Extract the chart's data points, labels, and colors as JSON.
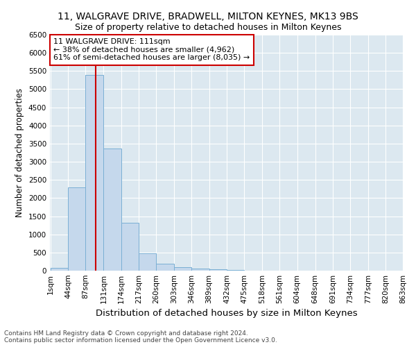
{
  "title1": "11, WALGRAVE DRIVE, BRADWELL, MILTON KEYNES, MK13 9BS",
  "title2": "Size of property relative to detached houses in Milton Keynes",
  "xlabel": "Distribution of detached houses by size in Milton Keynes",
  "ylabel": "Number of detached properties",
  "bar_values": [
    75,
    2300,
    5400,
    3370,
    1310,
    480,
    190,
    90,
    50,
    40,
    10,
    5,
    3,
    2,
    1,
    1,
    0,
    0,
    0,
    0
  ],
  "bin_edges": [
    1,
    44,
    87,
    131,
    174,
    217,
    260,
    303,
    346,
    389,
    432,
    475,
    518,
    561,
    604,
    648,
    691,
    734,
    777,
    820,
    863
  ],
  "bar_color": "#c5d8ec",
  "bar_edgecolor": "#7aafd4",
  "vline_x": 111,
  "vline_color": "#cc0000",
  "annotation_text": "11 WALGRAVE DRIVE: 111sqm\n← 38% of detached houses are smaller (4,962)\n61% of semi-detached houses are larger (8,035) →",
  "annotation_box_color": "#ffffff",
  "annotation_box_edgecolor": "#cc0000",
  "footnote": "Contains HM Land Registry data © Crown copyright and database right 2024.\nContains public sector information licensed under the Open Government Licence v3.0.",
  "ylim": [
    0,
    6500
  ],
  "yticks": [
    0,
    500,
    1000,
    1500,
    2000,
    2500,
    3000,
    3500,
    4000,
    4500,
    5000,
    5500,
    6000,
    6500
  ],
  "background_color": "#dce8f0",
  "grid_color": "#ffffff",
  "title1_fontsize": 10,
  "title2_fontsize": 9,
  "xlabel_fontsize": 9.5,
  "ylabel_fontsize": 8.5,
  "tick_labelsize": 7.5,
  "annotation_fontsize": 8,
  "footnote_fontsize": 6.5
}
